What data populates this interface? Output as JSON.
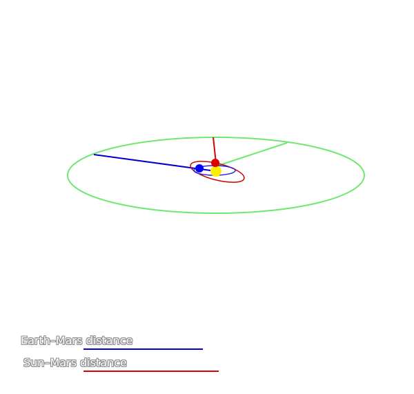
{
  "scene": {
    "bodies": [
      {
        "name": "Sun",
        "color": "#ffee00"
      },
      {
        "name": "Earth",
        "color": "#0000ff"
      },
      {
        "name": "Mars",
        "color": "#e00000"
      }
    ],
    "colors": {
      "mars_orbit": "#6fe86f",
      "earth_orbit": "#2222dd",
      "sun_path": "#cc0000",
      "earth_mars_line": "#0000cc",
      "sun_mars_line": "#dd0000"
    }
  },
  "legend": {
    "earth_mars": {
      "label": "Earth–Mars distance",
      "color": "#0000cc"
    },
    "sun_mars": {
      "label": "Sun–Mars distance",
      "color": "#dd0000"
    }
  }
}
